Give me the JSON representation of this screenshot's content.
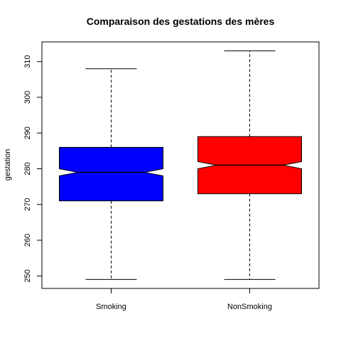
{
  "chart_data": {
    "type": "box",
    "title": "Comparaison des gestations des mères",
    "xlabel": "",
    "ylabel": "gestation",
    "ylim": [
      246.5,
      315.5
    ],
    "y_ticks": [
      250,
      260,
      270,
      280,
      290,
      300,
      310
    ],
    "notched": true,
    "categories": [
      "Smoking",
      "NonSmoking"
    ],
    "series": [
      {
        "name": "Smoking",
        "color": "#0000ff",
        "whisker_low": 249,
        "q1": 271,
        "median": 279,
        "q3": 286,
        "whisker_high": 308,
        "notch_low": 278,
        "notch_high": 280
      },
      {
        "name": "NonSmoking",
        "color": "#ff0000",
        "whisker_low": 249,
        "q1": 273,
        "median": 281,
        "q3": 289,
        "whisker_high": 313,
        "notch_low": 280,
        "notch_high": 282
      }
    ]
  }
}
